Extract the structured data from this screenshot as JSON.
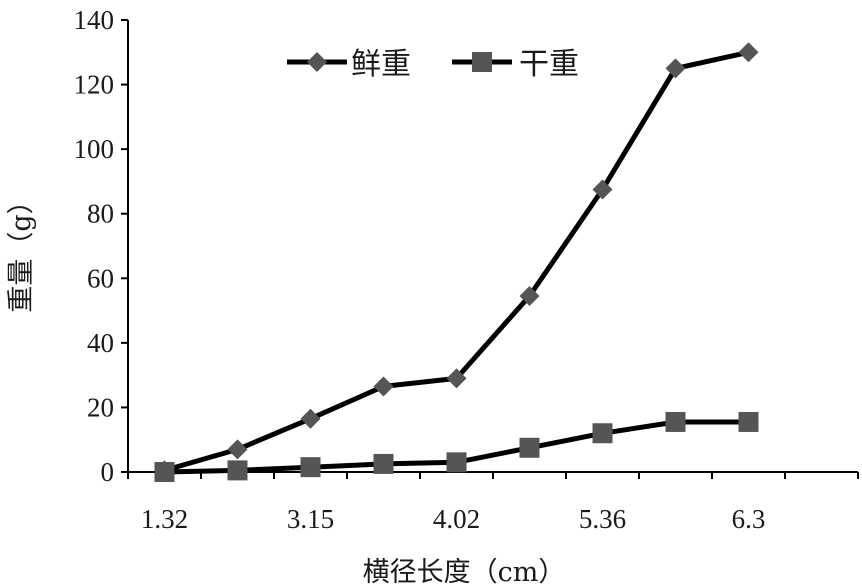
{
  "chart_data": {
    "type": "line",
    "xlabel": "横径长度（cm）",
    "ylabel": "重量（g）",
    "x_tick_labels": [
      "1.32",
      "3.15",
      "4.02",
      "5.36",
      "6.3"
    ],
    "ylim": [
      0,
      140
    ],
    "yticks": [
      0,
      20,
      40,
      60,
      80,
      100,
      120,
      140
    ],
    "grid": false,
    "legend_position": "top-center",
    "series": [
      {
        "name": "鲜重",
        "marker": "diamond",
        "color": "#555555",
        "values": [
          0.5,
          7,
          16.5,
          26.5,
          29,
          54.5,
          87.5,
          125,
          130
        ]
      },
      {
        "name": "干重",
        "marker": "square",
        "color": "#555555",
        "values": [
          0,
          0.5,
          1.5,
          2.5,
          3,
          7.5,
          12,
          15.5,
          15.5
        ]
      }
    ],
    "line_color": "#000000"
  }
}
